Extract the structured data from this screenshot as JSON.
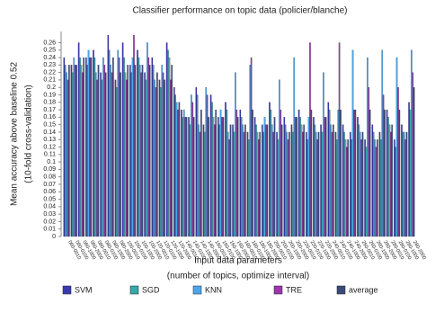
{
  "chart_data": {
    "type": "bar",
    "title": "Classifier performance on topic data (policier/blanche)",
    "ylabel_lines": [
      "Mean accuracy above baseline 0.52",
      "(10-fold cross-validation)"
    ],
    "xlabel_lines": [
      "Input data parameters",
      "(number of topics, optimize interval)"
    ],
    "categories": [
      "060-0010",
      "060-0100",
      "060-1000",
      "060-2000",
      "080-0010",
      "080-0100",
      "080-1000",
      "080-2000",
      "100-0010",
      "100-0100",
      "100-1000",
      "100-2000",
      "120-0010",
      "120-0100",
      "120-1000",
      "120-2000",
      "140-0010",
      "140-0100",
      "140-1000",
      "140-2000",
      "160-0010",
      "160-0100",
      "160-1000",
      "160-2000",
      "180-0010",
      "180-0100",
      "180-1000",
      "180-2000",
      "200-0010",
      "200-0100",
      "200-1000",
      "200-2000",
      "220-0010",
      "220-0100",
      "220-1000",
      "220-2000",
      "240-0010",
      "240-0100",
      "240-1000",
      "240-2000",
      "260-0010",
      "260-0100",
      "260-1000",
      "260-2000",
      "280-0010",
      "280-0100",
      "280-1000",
      "280-2000"
    ],
    "series": [
      {
        "name": "SVM",
        "color": "#3a3ab0",
        "values": [
          0.24,
          0.23,
          0.26,
          0.24,
          0.25,
          0.22,
          0.27,
          0.21,
          0.26,
          0.23,
          0.25,
          0.22,
          0.24,
          0.21,
          0.26,
          0.2,
          0.17,
          0.16,
          0.2,
          0.15,
          0.19,
          0.16,
          0.18,
          0.15,
          0.17,
          0.14,
          0.16,
          0.15,
          0.18,
          0.14,
          0.16,
          0.15,
          0.17,
          0.14,
          0.16,
          0.15,
          0.18,
          0.14,
          0.15,
          0.14,
          0.16,
          0.13,
          0.15,
          0.14,
          0.17,
          0.13,
          0.15,
          0.18
        ]
      },
      {
        "name": "SGD",
        "color": "#38a8a8",
        "values": [
          0.23,
          0.22,
          0.24,
          0.23,
          0.24,
          0.21,
          0.25,
          0.2,
          0.24,
          0.22,
          0.24,
          0.21,
          0.23,
          0.2,
          0.25,
          0.19,
          0.16,
          0.15,
          0.19,
          0.14,
          0.18,
          0.15,
          0.17,
          0.14,
          0.16,
          0.13,
          0.15,
          0.14,
          0.17,
          0.13,
          0.15,
          0.14,
          0.16,
          0.13,
          0.15,
          0.14,
          0.17,
          0.13,
          0.14,
          0.13,
          0.15,
          0.12,
          0.14,
          0.13,
          0.16,
          0.12,
          0.14,
          0.17
        ]
      },
      {
        "name": "KNN",
        "color": "#4aa8ea",
        "values": [
          0.22,
          0.24,
          0.23,
          0.25,
          0.22,
          0.24,
          0.23,
          0.25,
          0.22,
          0.24,
          0.23,
          0.26,
          0.21,
          0.23,
          0.24,
          0.18,
          0.17,
          0.19,
          0.15,
          0.2,
          0.16,
          0.17,
          0.14,
          0.22,
          0.15,
          0.23,
          0.14,
          0.16,
          0.15,
          0.21,
          0.14,
          0.24,
          0.15,
          0.16,
          0.14,
          0.22,
          0.15,
          0.17,
          0.13,
          0.25,
          0.14,
          0.24,
          0.13,
          0.25,
          0.15,
          0.24,
          0.14,
          0.25
        ]
      },
      {
        "name": "TRE",
        "color": "#9a38a8",
        "values": [
          0.21,
          0.23,
          0.22,
          0.24,
          0.21,
          0.23,
          0.22,
          0.24,
          0.21,
          0.27,
          0.22,
          0.24,
          0.2,
          0.22,
          0.21,
          0.17,
          0.16,
          0.18,
          0.14,
          0.19,
          0.15,
          0.16,
          0.13,
          0.17,
          0.14,
          0.24,
          0.13,
          0.15,
          0.14,
          0.17,
          0.13,
          0.16,
          0.14,
          0.26,
          0.13,
          0.16,
          0.14,
          0.26,
          0.12,
          0.17,
          0.13,
          0.2,
          0.12,
          0.19,
          0.14,
          0.2,
          0.13,
          0.22
        ]
      },
      {
        "name": "average",
        "color": "#3a4a78",
        "values": [
          0.23,
          0.23,
          0.24,
          0.24,
          0.23,
          0.22,
          0.24,
          0.22,
          0.23,
          0.23,
          0.23,
          0.23,
          0.22,
          0.21,
          0.23,
          0.18,
          0.16,
          0.16,
          0.17,
          0.16,
          0.17,
          0.16,
          0.15,
          0.16,
          0.15,
          0.17,
          0.14,
          0.15,
          0.16,
          0.15,
          0.14,
          0.16,
          0.15,
          0.17,
          0.14,
          0.16,
          0.15,
          0.17,
          0.13,
          0.17,
          0.14,
          0.17,
          0.13,
          0.17,
          0.15,
          0.17,
          0.14,
          0.2
        ]
      }
    ],
    "ylim": [
      0,
      0.275
    ],
    "yticks": [
      0,
      0.01,
      0.02,
      0.03,
      0.04,
      0.05,
      0.06,
      0.07,
      0.08,
      0.09,
      0.1,
      0.11,
      0.12,
      0.13,
      0.14,
      0.15,
      0.16,
      0.17,
      0.18,
      0.19,
      0.2,
      0.21,
      0.22,
      0.23,
      0.24,
      0.25,
      0.26
    ]
  }
}
